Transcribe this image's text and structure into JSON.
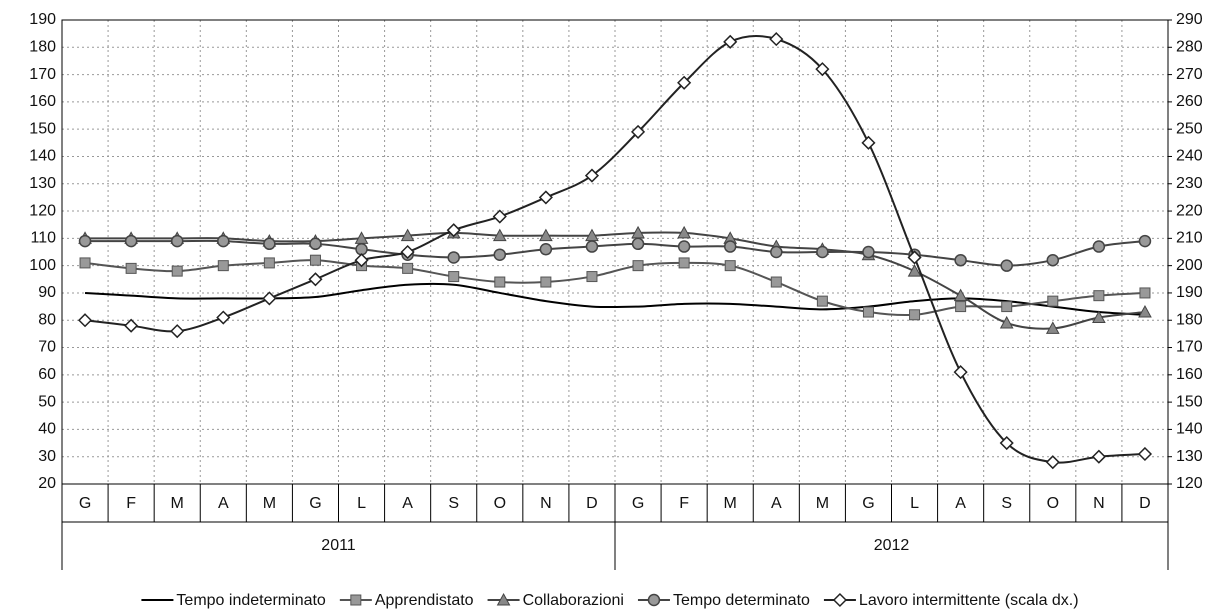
{
  "chart_data": {
    "type": "line",
    "categories": [
      "G",
      "F",
      "M",
      "A",
      "M",
      "G",
      "L",
      "A",
      "S",
      "O",
      "N",
      "D",
      "G",
      "F",
      "M",
      "A",
      "M",
      "G",
      "L",
      "A",
      "S",
      "O",
      "N",
      "D"
    ],
    "years": [
      "2011",
      "2012"
    ],
    "ylim": [
      20,
      190
    ],
    "yticks": [
      20,
      30,
      40,
      50,
      60,
      70,
      80,
      90,
      100,
      110,
      120,
      130,
      140,
      150,
      160,
      170,
      180,
      190
    ],
    "y2lim": [
      120,
      290
    ],
    "y2ticks": [
      120,
      130,
      140,
      150,
      160,
      170,
      180,
      190,
      200,
      210,
      220,
      230,
      240,
      250,
      260,
      270,
      280,
      290
    ],
    "grid": true,
    "series": [
      {
        "name": "Tempo indeterminato",
        "color": "#000000",
        "marker": "none",
        "values": [
          90,
          89,
          88,
          88,
          88,
          88.5,
          91,
          93,
          93,
          90,
          87,
          85,
          85,
          86,
          86,
          85,
          84,
          85,
          87,
          88,
          87,
          85,
          83,
          82
        ]
      },
      {
        "name": "Apprendistato",
        "color": "#555555",
        "marker": "square",
        "values": [
          101,
          99,
          98,
          100,
          101,
          102,
          100,
          99,
          96,
          94,
          94,
          96,
          100,
          101,
          100,
          94,
          87,
          83,
          82,
          85,
          85,
          87,
          89,
          90
        ]
      },
      {
        "name": "Collaborazioni",
        "color": "#444444",
        "marker": "triangle",
        "values": [
          110,
          110,
          110,
          110,
          109,
          109,
          110,
          111,
          112,
          111,
          111,
          111,
          112,
          112,
          110,
          107,
          106,
          104,
          98,
          89,
          79,
          77,
          81,
          83
        ]
      },
      {
        "name": "Tempo determinato",
        "color": "#444444",
        "marker": "circle",
        "values": [
          109,
          109,
          109,
          109,
          108,
          108,
          106,
          104,
          103,
          104,
          106,
          107,
          108,
          107,
          107,
          105,
          105,
          105,
          104,
          102,
          100,
          102,
          107,
          109
        ]
      },
      {
        "name": "Lavoro intermittente (scala dx.)",
        "color": "#222222",
        "marker": "diamond",
        "axis": "y2",
        "values": [
          180,
          178,
          176,
          181,
          188,
          195,
          202,
          205,
          213,
          218,
          225,
          233,
          249,
          267,
          282,
          283,
          272,
          245,
          203,
          161,
          135,
          128,
          130,
          131
        ]
      }
    ]
  }
}
